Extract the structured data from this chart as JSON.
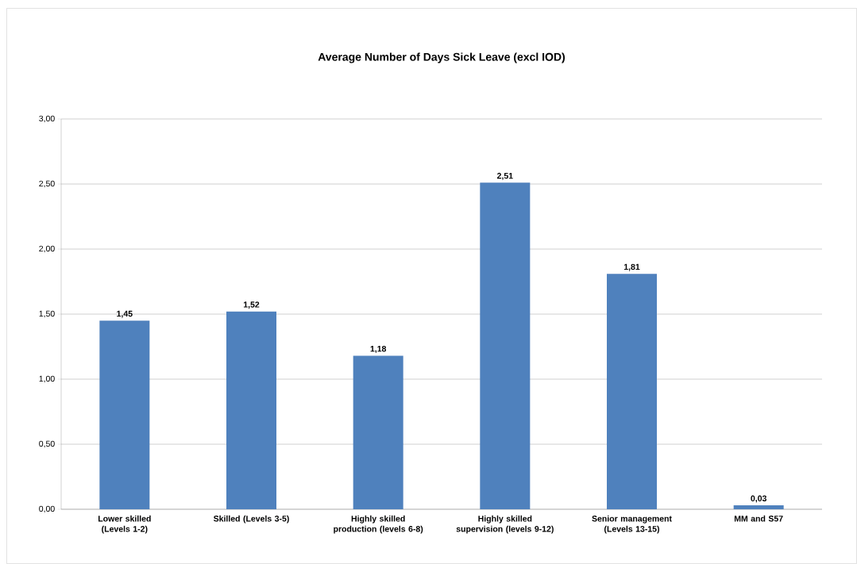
{
  "chart_data": {
    "type": "bar",
    "title": "Average Number of Days Sick Leave (excl IOD)",
    "categories": [
      "Lower skilled (Levels 1-2)",
      "Skilled (Levels 3-5)",
      "Highly skilled production (levels 6-8)",
      "Highly skilled supervision (levels 9-12)",
      "Senior management (Levels 13-15)",
      "MM and S57"
    ],
    "values": [
      1.45,
      1.52,
      1.18,
      2.51,
      1.81,
      0.03
    ],
    "value_labels": [
      "1,45",
      "1,52",
      "1,18",
      "2,51",
      "1,81",
      "0,03"
    ],
    "color": "#4f81bd",
    "ylim": [
      0,
      3
    ],
    "yticks": [
      {
        "value": 0,
        "label": "0,00"
      },
      {
        "value": 0.5,
        "label": "0,50"
      },
      {
        "value": 1,
        "label": "1,00"
      },
      {
        "value": 1.5,
        "label": "1,50"
      },
      {
        "value": 2,
        "label": "2,00"
      },
      {
        "value": 2.5,
        "label": "2,50"
      },
      {
        "value": 3,
        "label": "3,00"
      }
    ],
    "grid": "y"
  }
}
